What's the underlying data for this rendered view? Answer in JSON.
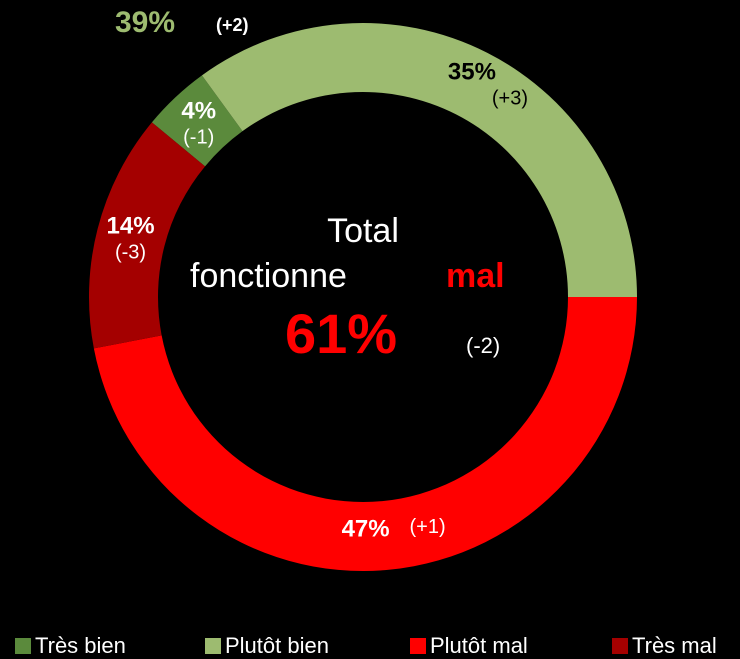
{
  "chart_data": {
    "type": "donut",
    "categories": [
      "Très bien",
      "Plutôt bien",
      "Plutôt mal",
      "Très mal"
    ],
    "values": [
      4,
      35,
      47,
      14
    ],
    "value_labels": [
      "4%",
      "35%",
      "47%",
      "14%"
    ],
    "change_labels": [
      "(-1)",
      "(+3)",
      "(+1)",
      "(-3)"
    ],
    "colors": [
      "#5b8a3c",
      "#9dbb70",
      "#ff0000",
      "#a40000"
    ],
    "total_bien": {
      "value": 39,
      "label": "39%",
      "change": "(+2)",
      "color": "#9dbb70"
    },
    "center": {
      "line1": "Total",
      "line2": "fonctionne",
      "highlight": "mal",
      "value": 61,
      "label": "61%",
      "change": "(-2)",
      "color": "#ff0000"
    }
  }
}
